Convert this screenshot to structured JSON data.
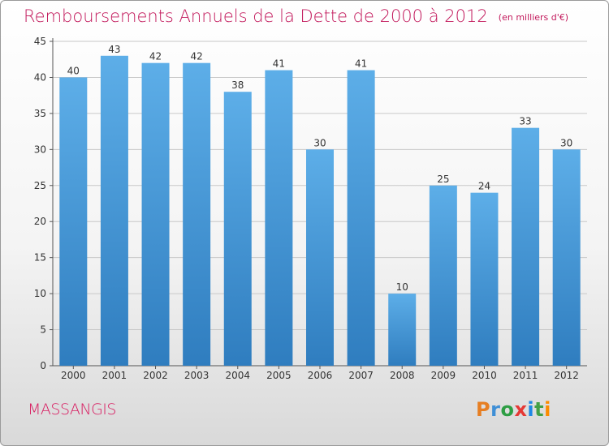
{
  "header": {
    "title": "Remboursements Annuels de la Dette de 2000 à 2012",
    "unit": "(en milliers d'€)"
  },
  "footer": {
    "commune": "MASSANGIS",
    "logo": "Proxiti"
  },
  "colors": {
    "title": "#c2185b",
    "bar_top": "#5daee8",
    "bar_bottom": "#2f7dbf",
    "grid": "#c8c8c8",
    "logo_letters": [
      "#e67e22",
      "#3f8fd6",
      "#2e9e44",
      "#e53935",
      "#1e88e5",
      "#43a047",
      "#fb8c00"
    ]
  },
  "chart_data": {
    "type": "bar",
    "title": "Remboursements Annuels de la Dette de 2000 à 2012",
    "xlabel": "",
    "ylabel": "",
    "categories": [
      "2000",
      "2001",
      "2002",
      "2003",
      "2004",
      "2005",
      "2006",
      "2007",
      "2008",
      "2009",
      "2010",
      "2011",
      "2012"
    ],
    "values": [
      40,
      43,
      42,
      42,
      38,
      41,
      30,
      41,
      10,
      25,
      24,
      33,
      30
    ],
    "ylim": [
      0,
      45
    ],
    "yticks": [
      0,
      5,
      10,
      15,
      20,
      25,
      30,
      35,
      40,
      45
    ],
    "grid": true,
    "legend": "none"
  }
}
